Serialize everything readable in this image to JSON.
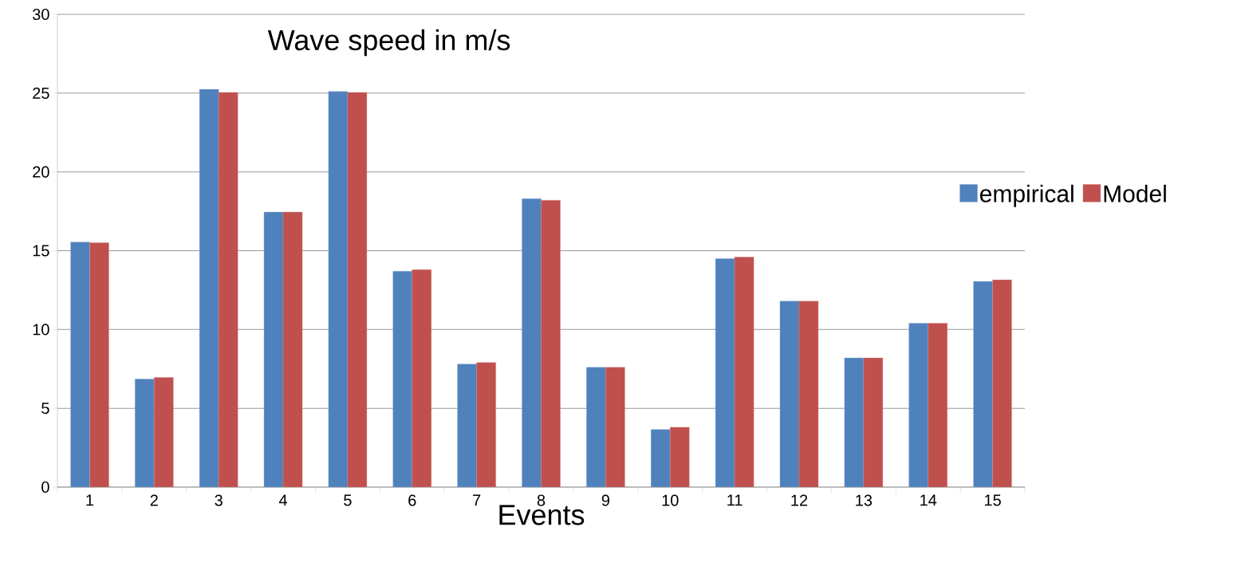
{
  "chart_data": {
    "type": "bar",
    "title": "Wave speed in m/s",
    "xlabel": "Events",
    "categories": [
      "1",
      "2",
      "3",
      "4",
      "5",
      "6",
      "7",
      "8",
      "9",
      "10",
      "11",
      "12",
      "13",
      "14",
      "15"
    ],
    "series": [
      {
        "name": "empirical",
        "color": "#4f81bd",
        "values": [
          15.55,
          6.85,
          25.25,
          17.45,
          25.1,
          13.7,
          7.8,
          18.3,
          7.6,
          3.65,
          14.5,
          11.8,
          8.2,
          10.4,
          13.05
        ]
      },
      {
        "name": "Model",
        "color": "#c0504d",
        "values": [
          15.5,
          6.95,
          25.05,
          17.45,
          25.05,
          13.8,
          7.9,
          18.2,
          7.6,
          3.8,
          14.6,
          11.8,
          8.2,
          10.4,
          13.15
        ]
      }
    ],
    "ylim": [
      0,
      30
    ],
    "yticks": [
      0,
      5,
      10,
      15,
      20,
      25,
      30
    ],
    "grid": "y",
    "legend": "right"
  }
}
